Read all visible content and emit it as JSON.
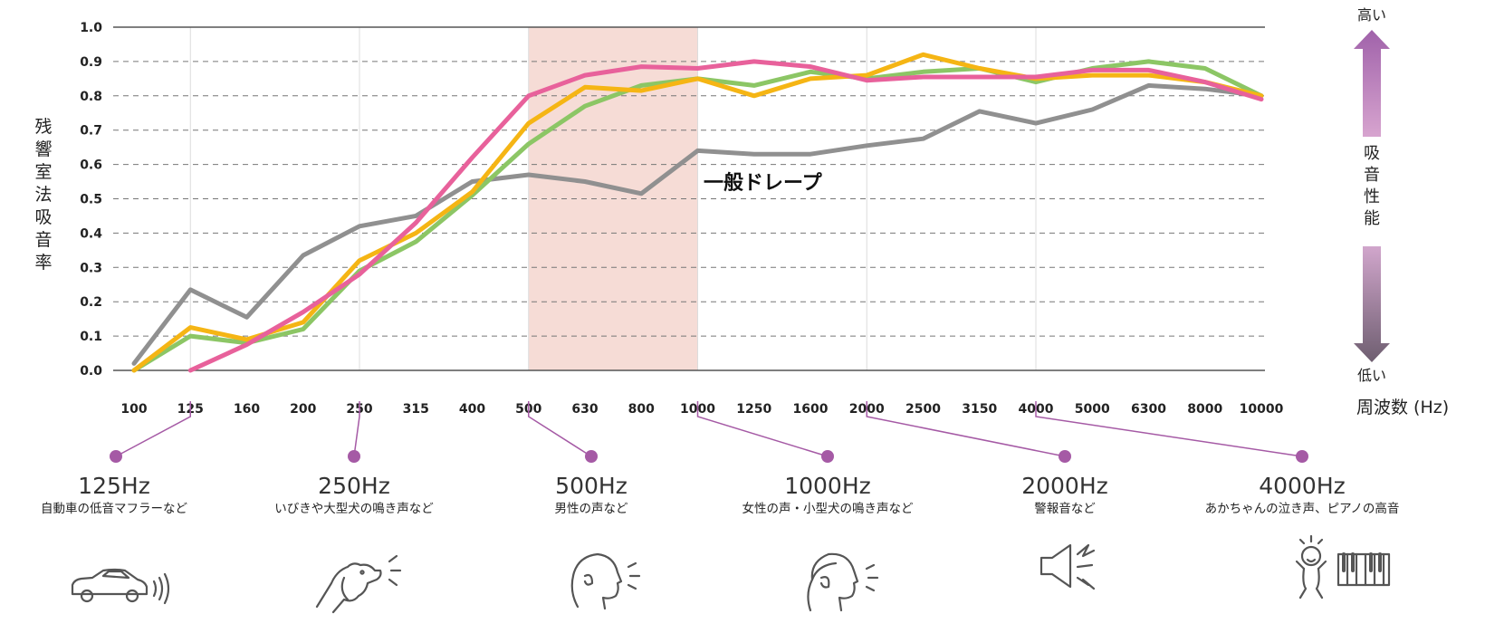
{
  "chart_data": {
    "type": "line",
    "ylabel": "残響室法吸音率",
    "xlabel": "周波数 (Hz)",
    "ylim": [
      0,
      1
    ],
    "yticks": [
      "0.0",
      "0.1",
      "0.2",
      "0.3",
      "0.4",
      "0.5",
      "0.6",
      "0.7",
      "0.8",
      "0.9",
      "1.0"
    ],
    "categories": [
      "100",
      "125",
      "160",
      "200",
      "250",
      "315",
      "400",
      "500",
      "630",
      "800",
      "1000",
      "1250",
      "1600",
      "2000",
      "2500",
      "3150",
      "4000",
      "5000",
      "6300",
      "8000",
      "10000"
    ],
    "grid": true,
    "highlight_band": {
      "from": "500",
      "to": "1000",
      "color": "#f6dcd6"
    },
    "series": [
      {
        "color": "#909090",
        "values": [
          0.02,
          0.235,
          0.155,
          0.335,
          0.42,
          0.45,
          0.55,
          0.57,
          0.55,
          0.515,
          0.64,
          0.63,
          0.63,
          0.655,
          0.675,
          0.755,
          0.72,
          0.76,
          0.83,
          0.82,
          0.8
        ]
      },
      {
        "color": "#8cc665",
        "values": [
          0.0,
          0.1,
          0.08,
          0.12,
          0.29,
          0.375,
          0.51,
          0.66,
          0.77,
          0.83,
          0.85,
          0.83,
          0.87,
          0.85,
          0.87,
          0.88,
          0.84,
          0.88,
          0.9,
          0.88,
          0.8
        ]
      },
      {
        "color": "#f5b514",
        "values": [
          0.0,
          0.125,
          0.09,
          0.14,
          0.32,
          0.4,
          0.52,
          0.72,
          0.825,
          0.815,
          0.85,
          0.8,
          0.85,
          0.86,
          0.92,
          0.88,
          0.85,
          0.86,
          0.86,
          0.84,
          0.8
        ]
      },
      {
        "color": "#e8619b",
        "values": [
          null,
          0.0,
          0.075,
          0.17,
          0.28,
          0.43,
          0.62,
          0.8,
          0.86,
          0.885,
          0.88,
          0.9,
          0.885,
          0.845,
          0.855,
          0.855,
          0.855,
          0.875,
          0.875,
          0.84,
          0.79
        ]
      }
    ],
    "annotations": [
      {
        "text": "一般ドレープ",
        "series_index": 0
      }
    ]
  },
  "side_scale": {
    "high": "高い",
    "title": "吸音性能",
    "low": "低い",
    "up_color": "#a068a8",
    "down_color": "#7a6878"
  },
  "frequency_examples": [
    {
      "tick": "125",
      "label": "125Hz",
      "desc": "自動車の低音マフラーなど",
      "icon": "car-icon"
    },
    {
      "tick": "250",
      "label": "250Hz",
      "desc": "いびきや大型犬の鳴き声など",
      "icon": "dog-barking-icon"
    },
    {
      "tick": "500",
      "label": "500Hz",
      "desc": "男性の声など",
      "icon": "man-speaking-icon"
    },
    {
      "tick": "1000",
      "label": "1000Hz",
      "desc": "女性の声・小型犬の鳴き声など",
      "icon": "woman-speaking-icon"
    },
    {
      "tick": "2000",
      "label": "2000Hz",
      "desc": "警報音など",
      "icon": "alarm-speaker-icon"
    },
    {
      "tick": "4000",
      "label": "4000Hz",
      "desc": "あかちゃんの泣き声、ピアノの高音",
      "icon": "baby-crying-piano-icon"
    }
  ],
  "marker_color": "#a55aa5"
}
